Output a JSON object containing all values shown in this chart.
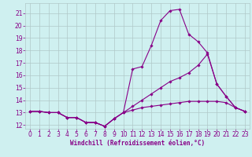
{
  "xlabel": "Windchill (Refroidissement éolien,°C)",
  "bg_color": "#cff0f0",
  "grid_color": "#b0c8c8",
  "line_color": "#880088",
  "xlim": [
    -0.5,
    23.5
  ],
  "ylim": [
    11.7,
    21.8
  ],
  "yticks": [
    12,
    13,
    14,
    15,
    16,
    17,
    18,
    19,
    20,
    21
  ],
  "xticks": [
    0,
    1,
    2,
    3,
    4,
    5,
    6,
    7,
    8,
    9,
    10,
    11,
    12,
    13,
    14,
    15,
    16,
    17,
    18,
    19,
    20,
    21,
    22,
    23
  ],
  "series1_x": [
    0,
    1,
    2,
    3,
    4,
    5,
    6,
    7,
    8,
    9,
    10,
    11,
    12,
    13,
    14,
    15,
    16,
    17,
    18,
    19,
    20,
    21,
    22,
    23
  ],
  "series1_y": [
    13.1,
    13.1,
    13.0,
    13.0,
    12.6,
    12.6,
    12.2,
    12.2,
    11.9,
    12.5,
    13.0,
    16.5,
    16.7,
    18.4,
    20.4,
    21.2,
    21.3,
    19.3,
    18.7,
    17.8,
    15.3,
    14.3,
    13.4,
    13.1
  ],
  "series2_x": [
    0,
    1,
    2,
    3,
    4,
    5,
    6,
    7,
    8,
    9,
    10,
    11,
    12,
    13,
    14,
    15,
    16,
    17,
    18,
    19,
    20,
    21,
    22,
    23
  ],
  "series2_y": [
    13.1,
    13.1,
    13.0,
    13.0,
    12.6,
    12.6,
    12.2,
    12.2,
    11.9,
    12.5,
    13.0,
    13.5,
    14.0,
    14.5,
    15.0,
    15.5,
    15.8,
    16.2,
    16.8,
    17.7,
    15.3,
    14.3,
    13.4,
    13.1
  ],
  "series3_x": [
    0,
    1,
    2,
    3,
    4,
    5,
    6,
    7,
    8,
    9,
    10,
    11,
    12,
    13,
    14,
    15,
    16,
    17,
    18,
    19,
    20,
    21,
    22,
    23
  ],
  "series3_y": [
    13.1,
    13.1,
    13.0,
    13.0,
    12.6,
    12.6,
    12.2,
    12.2,
    11.9,
    12.5,
    13.0,
    13.2,
    13.4,
    13.5,
    13.6,
    13.7,
    13.8,
    13.9,
    13.9,
    13.9,
    13.9,
    13.8,
    13.4,
    13.1
  ],
  "xlabel_fontsize": 5.5,
  "tick_fontsize": 5.5
}
